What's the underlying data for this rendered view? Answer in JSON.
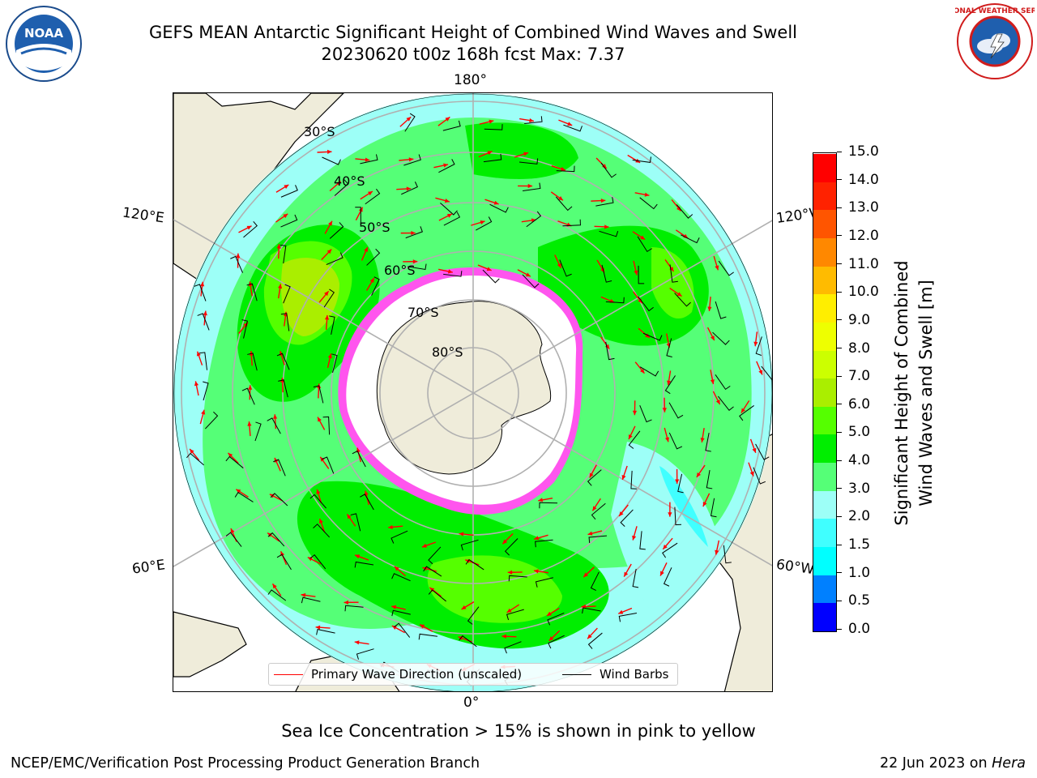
{
  "header": {
    "title_line1": "GEFS MEAN Antarctic Significant Height of Combined Wind Waves and Swell",
    "title_line2": "20230620 t00z 168h fcst   Max: 7.37"
  },
  "logos": {
    "left": {
      "name": "noaa-logo",
      "text": "NOAA",
      "ring_text": "NATIONAL OCEANIC AND ATMOSPHERIC ADMINISTRATION · U.S. DEPARTMENT OF COMMERCE"
    },
    "right": {
      "name": "nws-logo",
      "ring_text": "NATIONAL WEATHER SERVICE"
    }
  },
  "map": {
    "projection": "south-polar-stereographic",
    "lon_labels": {
      "top": "180°",
      "bottom": "0°",
      "left_upper": "120°E",
      "left_lower": "60°E",
      "right_upper": "120°W",
      "right_lower": "60°W"
    },
    "lat_labels": [
      "30°S",
      "40°S",
      "50°S",
      "60°S",
      "70°S",
      "80°S"
    ],
    "colors": {
      "land": "#efecda",
      "antarctic_ice": "#ffffff",
      "sea_ice": "#ff55ee",
      "grid": "#b0b0b0"
    }
  },
  "legend": {
    "items": [
      {
        "label": "Primary Wave Direction (unscaled)",
        "color": "#ff0000"
      },
      {
        "label": "Wind Barbs",
        "color": "#000000"
      }
    ]
  },
  "colorbar": {
    "label_line1": "Significant Height of Combined",
    "label_line2": "Wind Waves and Swell [m]",
    "ticks": [
      "0.0",
      "0.5",
      "1.0",
      "1.5",
      "2.0",
      "3.0",
      "4.0",
      "5.0",
      "6.0",
      "7.0",
      "8.0",
      "9.0",
      "10.0",
      "11.0",
      "12.0",
      "13.0",
      "14.0",
      "15.0"
    ],
    "colors": [
      "#0000ff",
      "#0080ff",
      "#00ffff",
      "#40ffff",
      "#9dfff7",
      "#55ff77",
      "#00ee00",
      "#55ff00",
      "#aaee00",
      "#ccff00",
      "#eeff00",
      "#ffee00",
      "#ffbb00",
      "#ff8800",
      "#ff5500",
      "#ff2200",
      "#ff0000"
    ]
  },
  "footer": {
    "note": "Sea Ice Concentration > 15% is shown in pink to yellow",
    "credit_left": "NCEP/EMC/Verification Post Processing Product Generation Branch",
    "credit_right_prefix": "22 Jun 2023 on ",
    "credit_right_italic": "Hera"
  }
}
